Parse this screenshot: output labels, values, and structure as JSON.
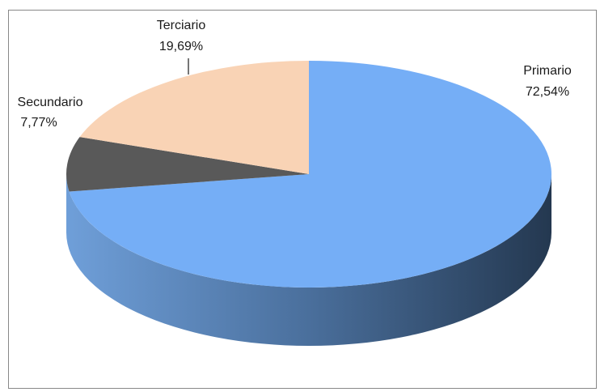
{
  "chart_data": {
    "type": "pie",
    "style": "3d",
    "title": "",
    "legend": "none",
    "slices": [
      {
        "label": "Primario",
        "value": 72.54,
        "display": "72,54%",
        "color": "#75aef6"
      },
      {
        "label": "Terciario",
        "value": 19.69,
        "display": "19,69%",
        "color": "#f9d3b5"
      },
      {
        "label": "Secundario",
        "value": 7.77,
        "display": "7,77%",
        "color": "#595959"
      }
    ]
  }
}
